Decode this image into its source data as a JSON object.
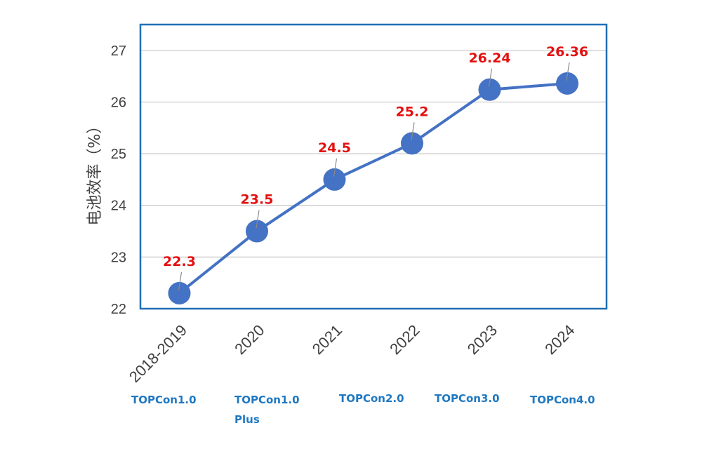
{
  "chart_data": {
    "type": "line",
    "categories": [
      "2018-2019",
      "2020",
      "2021",
      "2022",
      "2023",
      "2024"
    ],
    "values": [
      22.3,
      23.5,
      24.5,
      25.2,
      26.24,
      26.36
    ],
    "data_labels": [
      "22.3",
      "23.5",
      "24.5",
      "25.2",
      "26.24",
      "26.36"
    ],
    "ylabel": "电池效率（%）",
    "ylim": [
      22,
      27.5
    ],
    "yticks": [
      22,
      23,
      24,
      25,
      26,
      27
    ],
    "grid": true,
    "legend": "none",
    "colors": {
      "line": "#4472c4",
      "label": "#e31010",
      "frame": "#1f6fb5",
      "grid": "#c8c8c8"
    }
  },
  "generations": [
    {
      "line1": "TOPCon1.0",
      "line2": ""
    },
    {
      "line1": "TOPCon1.0",
      "line2": "Plus"
    },
    {
      "line1": "TOPCon2.0",
      "line2": ""
    },
    {
      "line1": "TOPCon3.0",
      "line2": ""
    },
    {
      "line1": "TOPCon4.0",
      "line2": ""
    }
  ]
}
